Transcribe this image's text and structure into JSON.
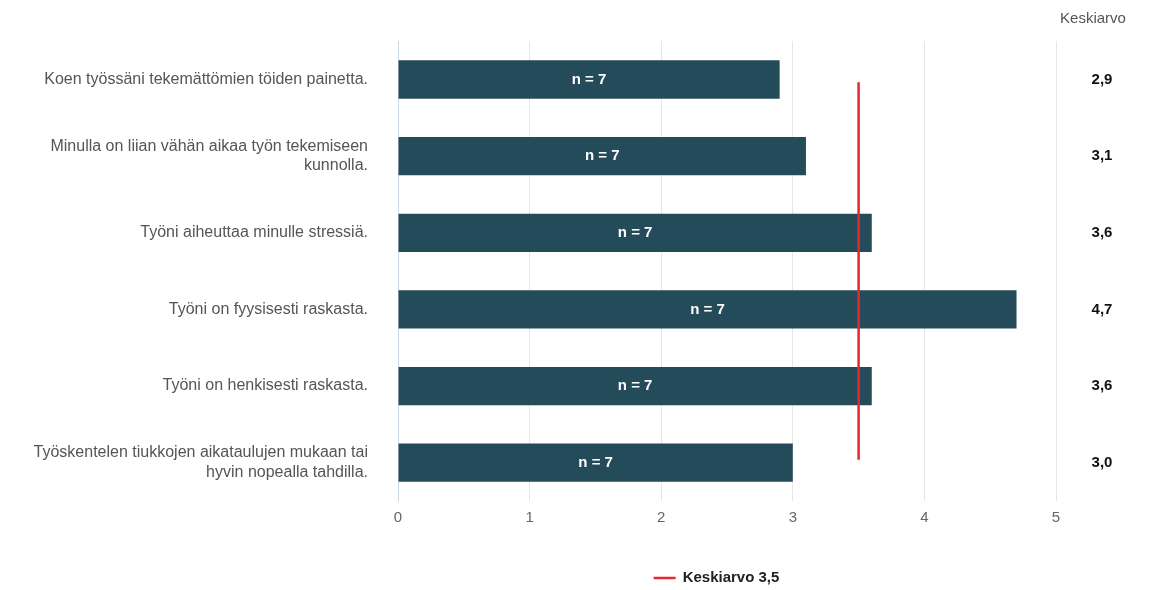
{
  "chart_data": {
    "type": "bar",
    "orientation": "horizontal",
    "categories": [
      "Koen työssäni tekemättömien töiden painetta.",
      "Minulla on liian vähän aikaa työn tekemiseen kunnolla.",
      "Työni aiheuttaa minulle stressiä.",
      "Työni on fyysisesti raskasta.",
      "Työni on henkisesti raskasta.",
      "Työskentelen tiukkojen aikataulujen mukaan tai hyvin nopealla tahdilla."
    ],
    "values": [
      2.9,
      3.1,
      3.6,
      4.7,
      3.6,
      3.0
    ],
    "value_labels": [
      "2,9",
      "3,1",
      "3,6",
      "4,7",
      "3,6",
      "3,0"
    ],
    "color": "#234b5a",
    "xlim": [
      0,
      5
    ],
    "xticks": [
      0,
      1,
      2,
      3,
      4,
      5
    ],
    "grid": "x",
    "ref_lines": [
      {
        "axis": "x",
        "value": 3.5,
        "label": "Keskiarvo 3,5",
        "color": "#e8262b"
      }
    ],
    "annotations": [
      "Keskiarvo",
      "n = 7",
      "n = 7",
      "n = 7",
      "n = 7",
      "n = 7",
      "n = 7"
    ],
    "legend": "bottom"
  }
}
